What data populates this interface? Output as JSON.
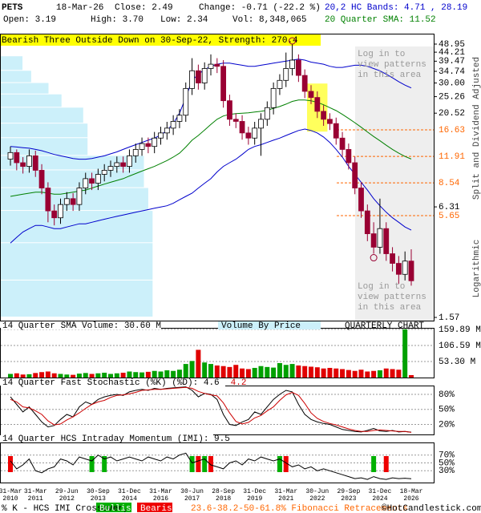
{
  "header": {
    "symbol": "PETS",
    "date": "18-Mar-26",
    "close": "Close: 2.49",
    "change": "Change: -0.71 (-22.2 %)",
    "bands": "20,2 HC Bands: 4.71 , 28.19",
    "open": "Open: 3.19",
    "high": "High: 3.70",
    "low": "Low: 2.34",
    "volume": "Vol: 8,348,065",
    "sma": "20 Quarter SMA: 11.52"
  },
  "pattern": "Bearish Three Outside Down on 30-Sep-22, Strength: 270.4",
  "login_note": [
    "Log in to\nview patterns\nin this area",
    "Log in to\nview patterns\nin this area"
  ],
  "side_labels": [
    "Split and Dividend Adjusted",
    "Logarithmic"
  ],
  "footer": {
    "crossover": "% K - HCS IMI Crossover,",
    "bullish": "Bullish",
    "bearish": "Bearish",
    "fibonacci": "23.6-38.2-50-61.8% Fibonacci Retracements",
    "copyright": "©HotCandlestick.com"
  },
  "chart_data": [
    {
      "type": "candlestick",
      "categories": [
        "31-Mar\n2010",
        null,
        null,
        null,
        "31-Mar\n2011",
        null,
        null,
        null,
        null,
        "29-Jun\n2012",
        null,
        null,
        null,
        null,
        "30-Sep\n2013",
        null,
        null,
        null,
        null,
        "31-Dec\n2014",
        null,
        null,
        null,
        null,
        "31-Mar\n2016",
        null,
        null,
        null,
        null,
        "30-Jun\n2017",
        null,
        null,
        null,
        null,
        "28-Sep\n2018",
        null,
        null,
        null,
        null,
        "31-Dec\n2019",
        null,
        null,
        null,
        null,
        "31-Mar\n2021",
        null,
        null,
        null,
        null,
        "30-Jun\n2022",
        null,
        null,
        null,
        null,
        "29-Sep\n2023",
        null,
        null,
        null,
        null,
        "31-Dec\n2024",
        null,
        null,
        null,
        null,
        "18-Mar\n2026"
      ],
      "open": [
        11.5,
        12.5,
        11,
        10.5,
        12,
        10,
        8,
        6,
        5.5,
        6.5,
        7,
        6.5,
        8,
        9,
        8.5,
        9.5,
        10,
        10.5,
        11,
        10.5,
        12,
        13,
        14,
        13.5,
        15,
        16,
        17,
        18.5,
        20,
        28,
        35,
        30,
        36,
        38,
        37,
        24,
        19,
        18.5,
        16,
        15,
        17,
        19,
        22,
        28,
        31,
        36,
        40,
        33,
        27,
        25,
        21,
        19,
        18,
        15,
        13,
        11,
        8,
        6,
        4.5,
        3.8,
        4.8,
        3.5,
        3.1,
        2.7,
        3.19
      ],
      "high": [
        13.5,
        13,
        11.8,
        13,
        12.8,
        10.8,
        8.6,
        6.5,
        7,
        7.6,
        7.5,
        8.6,
        9.7,
        9.7,
        10.2,
        10.8,
        11.3,
        11.9,
        11.9,
        13,
        14,
        15.1,
        15.1,
        16.2,
        17.3,
        18.4,
        20,
        21.6,
        30.2,
        41,
        37.8,
        38.9,
        43,
        41,
        40,
        25.9,
        20.5,
        20,
        17.3,
        18.4,
        20.5,
        23.8,
        30.2,
        33.5,
        44,
        48.95,
        43,
        35.6,
        29.2,
        27,
        22.7,
        20.5,
        19.4,
        16.2,
        14,
        11.9,
        8.6,
        6.5,
        5.2,
        7,
        5.2,
        3.8,
        3.4,
        3.6,
        3.7
      ],
      "low": [
        10.6,
        10,
        9.6,
        9.7,
        9.2,
        7.4,
        5.2,
        5,
        5.1,
        6,
        6,
        6,
        7.4,
        7.8,
        7.8,
        8.7,
        9.2,
        9.7,
        9.7,
        9.7,
        11,
        12,
        12.4,
        12.4,
        13.8,
        14.7,
        15.6,
        17,
        18.4,
        25.8,
        27.6,
        27.6,
        33,
        34,
        22,
        17.5,
        17,
        14.7,
        13.8,
        13.8,
        12,
        17.5,
        20.2,
        25.8,
        28.5,
        33,
        30.4,
        24.8,
        23,
        19.3,
        17.5,
        16.6,
        13.8,
        12,
        10.1,
        7.4,
        5.5,
        4.1,
        3.5,
        3.5,
        3.2,
        2.8,
        2.4,
        2.5,
        2.34
      ],
      "close": [
        12.5,
        11,
        10.5,
        12,
        10,
        8,
        6,
        5.5,
        6.5,
        7,
        6.5,
        8,
        9,
        8.5,
        9.5,
        10,
        10.5,
        11,
        10.5,
        12,
        13,
        14,
        13.5,
        15,
        16,
        17,
        18.5,
        20,
        28,
        35,
        30,
        36,
        38,
        37,
        24,
        19,
        18.5,
        16,
        15,
        17,
        19,
        22,
        28,
        31,
        36,
        40,
        33,
        27,
        25,
        21,
        19,
        18,
        15,
        13,
        11,
        8,
        6,
        4.5,
        3.8,
        4.8,
        3.5,
        3.1,
        2.7,
        3.19,
        2.49
      ],
      "up_color": "#ffffff",
      "down_color": "#990033",
      "series": [
        {
          "color": "#008000",
          "values": [
            7.2,
            7.3,
            7.4,
            7.5,
            7.6,
            7.6,
            7.5,
            7.4,
            7.4,
            7.5,
            7.6,
            7.7,
            7.8,
            8.0,
            8.2,
            8.4,
            8.6,
            8.8,
            9.0,
            9.3,
            9.6,
            9.9,
            10.2,
            10.5,
            10.9,
            11.3,
            11.8,
            12.4,
            13.4,
            14.6,
            15.5,
            16.6,
            17.8,
            19.0,
            19.8,
            20.2,
            20.4,
            20.5,
            20.6,
            20.8,
            21.0,
            21.3,
            21.8,
            22.3,
            23.0,
            23.8,
            24.2,
            24.2,
            24.0,
            23.5,
            22.8,
            22.0,
            21.2,
            20.2,
            19.2,
            18.2,
            17.2,
            16.2,
            15.3,
            14.5,
            13.7,
            13.0,
            12.4,
            11.9,
            11.52
          ]
        },
        {
          "color": "#0000cc",
          "values": [
            13.5,
            13.4,
            13.3,
            13.2,
            13.0,
            12.8,
            12.5,
            12.2,
            12.0,
            11.8,
            11.6,
            11.5,
            11.5,
            11.6,
            11.8,
            12.0,
            12.3,
            12.6,
            13.0,
            13.4,
            13.8,
            14.2,
            14.6,
            15.0,
            15.6,
            16.5,
            18.0,
            20.5,
            25.0,
            31.0,
            33.5,
            35.5,
            37.0,
            38.0,
            38.5,
            38.5,
            38.0,
            37.5,
            37.0,
            37.0,
            37.5,
            38.0,
            38.5,
            39.0,
            39.5,
            40.0,
            40.5,
            40.0,
            39.0,
            38.5,
            38.0,
            37.0,
            36.5,
            36.5,
            37.0,
            37.5,
            37.5,
            37.0,
            36.0,
            35.0,
            33.5,
            32.0,
            30.5,
            29.2,
            28.19
          ]
        },
        {
          "color": "#0000cc",
          "values": [
            4.0,
            4.3,
            4.6,
            4.8,
            5.0,
            5.0,
            4.9,
            4.8,
            4.8,
            4.9,
            5.0,
            5.1,
            5.1,
            5.2,
            5.3,
            5.4,
            5.5,
            5.6,
            5.7,
            5.8,
            5.9,
            6.0,
            6.1,
            6.2,
            6.3,
            6.4,
            6.6,
            6.9,
            7.2,
            7.5,
            8.0,
            8.5,
            9.0,
            9.8,
            10.5,
            11.0,
            11.5,
            12.2,
            13.0,
            13.5,
            13.8,
            14.2,
            14.6,
            15.0,
            15.5,
            16.0,
            16.5,
            16.8,
            16.5,
            16.0,
            15.2,
            14.2,
            13.0,
            11.8,
            10.5,
            9.5,
            8.6,
            7.8,
            7.0,
            6.4,
            5.9,
            5.5,
            5.2,
            4.9,
            4.71
          ]
        }
      ],
      "ylim": [
        1.57,
        48.95
      ],
      "log_scale": true,
      "yticks": [
        48.95,
        44.21,
        39.47,
        34.74,
        {
          "value": 30,
          "label": "30.00"
        },
        25.26,
        20.52,
        6.31,
        1.57
      ],
      "fib_levels": [
        16.63,
        11.91,
        8.54,
        5.65
      ],
      "fib_color": "#ff6600",
      "vbp_bins": [
        1.57,
        2.5,
        4,
        6,
        8,
        10,
        12,
        15,
        18,
        22,
        26,
        30,
        35,
        42
      ],
      "vbp_values": [
        35,
        35,
        35,
        34,
        33,
        33,
        20,
        20,
        19,
        14,
        11,
        7,
        5
      ],
      "vbp_xlim": [
        0,
        100
      ],
      "vbp_color": "#ccf0fa"
    },
    {
      "type": "bar",
      "title": "14 Quarter SMA Volume: 30.60 M",
      "subtitle": "Volume By Price",
      "annotation": "QUARTERLY CHART",
      "values": [
        12,
        14,
        10,
        11,
        15,
        18,
        20,
        14,
        12,
        10,
        9,
        13,
        15,
        12,
        14,
        16,
        12,
        14,
        16,
        20,
        18,
        17,
        19,
        22,
        20,
        24,
        22,
        26,
        45,
        55,
        92,
        50,
        45,
        40,
        38,
        35,
        42,
        30,
        28,
        32,
        38,
        35,
        33,
        48,
        42,
        45,
        40,
        38,
        36,
        34,
        30,
        32,
        30,
        28,
        25,
        22,
        26,
        20,
        22,
        24,
        30,
        28,
        26,
        160,
        8
      ],
      "up_color": "#00a000",
      "down_color": "#e00000",
      "ylim": [
        0,
        165
      ],
      "yticks": [
        {
          "value": 159.89,
          "label": "159.89 M"
        },
        {
          "value": 106.59,
          "label": "106.59 M"
        },
        {
          "value": 53.3,
          "label": "53.30 M"
        }
      ]
    },
    {
      "type": "line",
      "title": "14 Quarter Fast Stochastic (%K) (%D): 4.6",
      "d_label": "4.2",
      "series": [
        {
          "color": "#000000",
          "values": [
            75,
            60,
            45,
            55,
            40,
            25,
            15,
            18,
            30,
            40,
            35,
            55,
            65,
            60,
            70,
            75,
            78,
            80,
            78,
            85,
            88,
            90,
            88,
            92,
            90,
            92,
            93,
            94,
            95,
            88,
            75,
            82,
            80,
            70,
            40,
            20,
            18,
            25,
            30,
            45,
            40,
            55,
            70,
            80,
            88,
            85,
            60,
            40,
            30,
            25,
            22,
            20,
            15,
            10,
            8,
            6,
            5,
            8,
            12,
            7,
            6,
            8,
            5,
            6,
            4.6
          ]
        },
        {
          "color": "#cc0000",
          "values": [
            70,
            65,
            55,
            53,
            47,
            40,
            27,
            19,
            21,
            29,
            35,
            43,
            52,
            60,
            65,
            68,
            74,
            78,
            79,
            81,
            84,
            88,
            89,
            90,
            90,
            91,
            92,
            93,
            94,
            92,
            86,
            82,
            79,
            77,
            63,
            43,
            26,
            21,
            24,
            33,
            38,
            47,
            55,
            68,
            79,
            84,
            78,
            62,
            43,
            32,
            26,
            22,
            19,
            15,
            11,
            8,
            6,
            6,
            8,
            9,
            8,
            7,
            6,
            6,
            4.2
          ]
        }
      ],
      "ylim": [
        0,
        96
      ],
      "yticks": [
        {
          "value": 80,
          "label": "80%"
        },
        {
          "value": 50,
          "label": "50%"
        },
        {
          "value": 20,
          "label": "20%"
        }
      ]
    },
    {
      "type": "line",
      "title": "14 Quarter HCS Intraday Momentum (IMI): 9.5",
      "series": [
        {
          "color": "#000000",
          "values": [
            55,
            35,
            45,
            60,
            30,
            25,
            35,
            40,
            60,
            55,
            45,
            65,
            60,
            55,
            70,
            60,
            65,
            55,
            60,
            65,
            60,
            55,
            65,
            60,
            55,
            65,
            60,
            70,
            75,
            50,
            55,
            60,
            45,
            40,
            35,
            50,
            55,
            45,
            60,
            55,
            65,
            60,
            55,
            60,
            50,
            40,
            45,
            35,
            40,
            30,
            35,
            30,
            25,
            20,
            15,
            10,
            12,
            8,
            15,
            10,
            8,
            12,
            10,
            11,
            9.5
          ]
        }
      ],
      "bullish": [
        13,
        15,
        29,
        31,
        43,
        58
      ],
      "bearish": [
        0,
        30,
        32,
        44,
        60
      ],
      "bullish_color": "#00b000",
      "bearish_color": "#ee0000",
      "ylim": [
        0,
        100
      ],
      "yticks": [
        {
          "value": 70,
          "label": "70%"
        },
        {
          "value": 50,
          "label": "50%"
        },
        {
          "value": 30,
          "label": "30%"
        }
      ]
    }
  ]
}
